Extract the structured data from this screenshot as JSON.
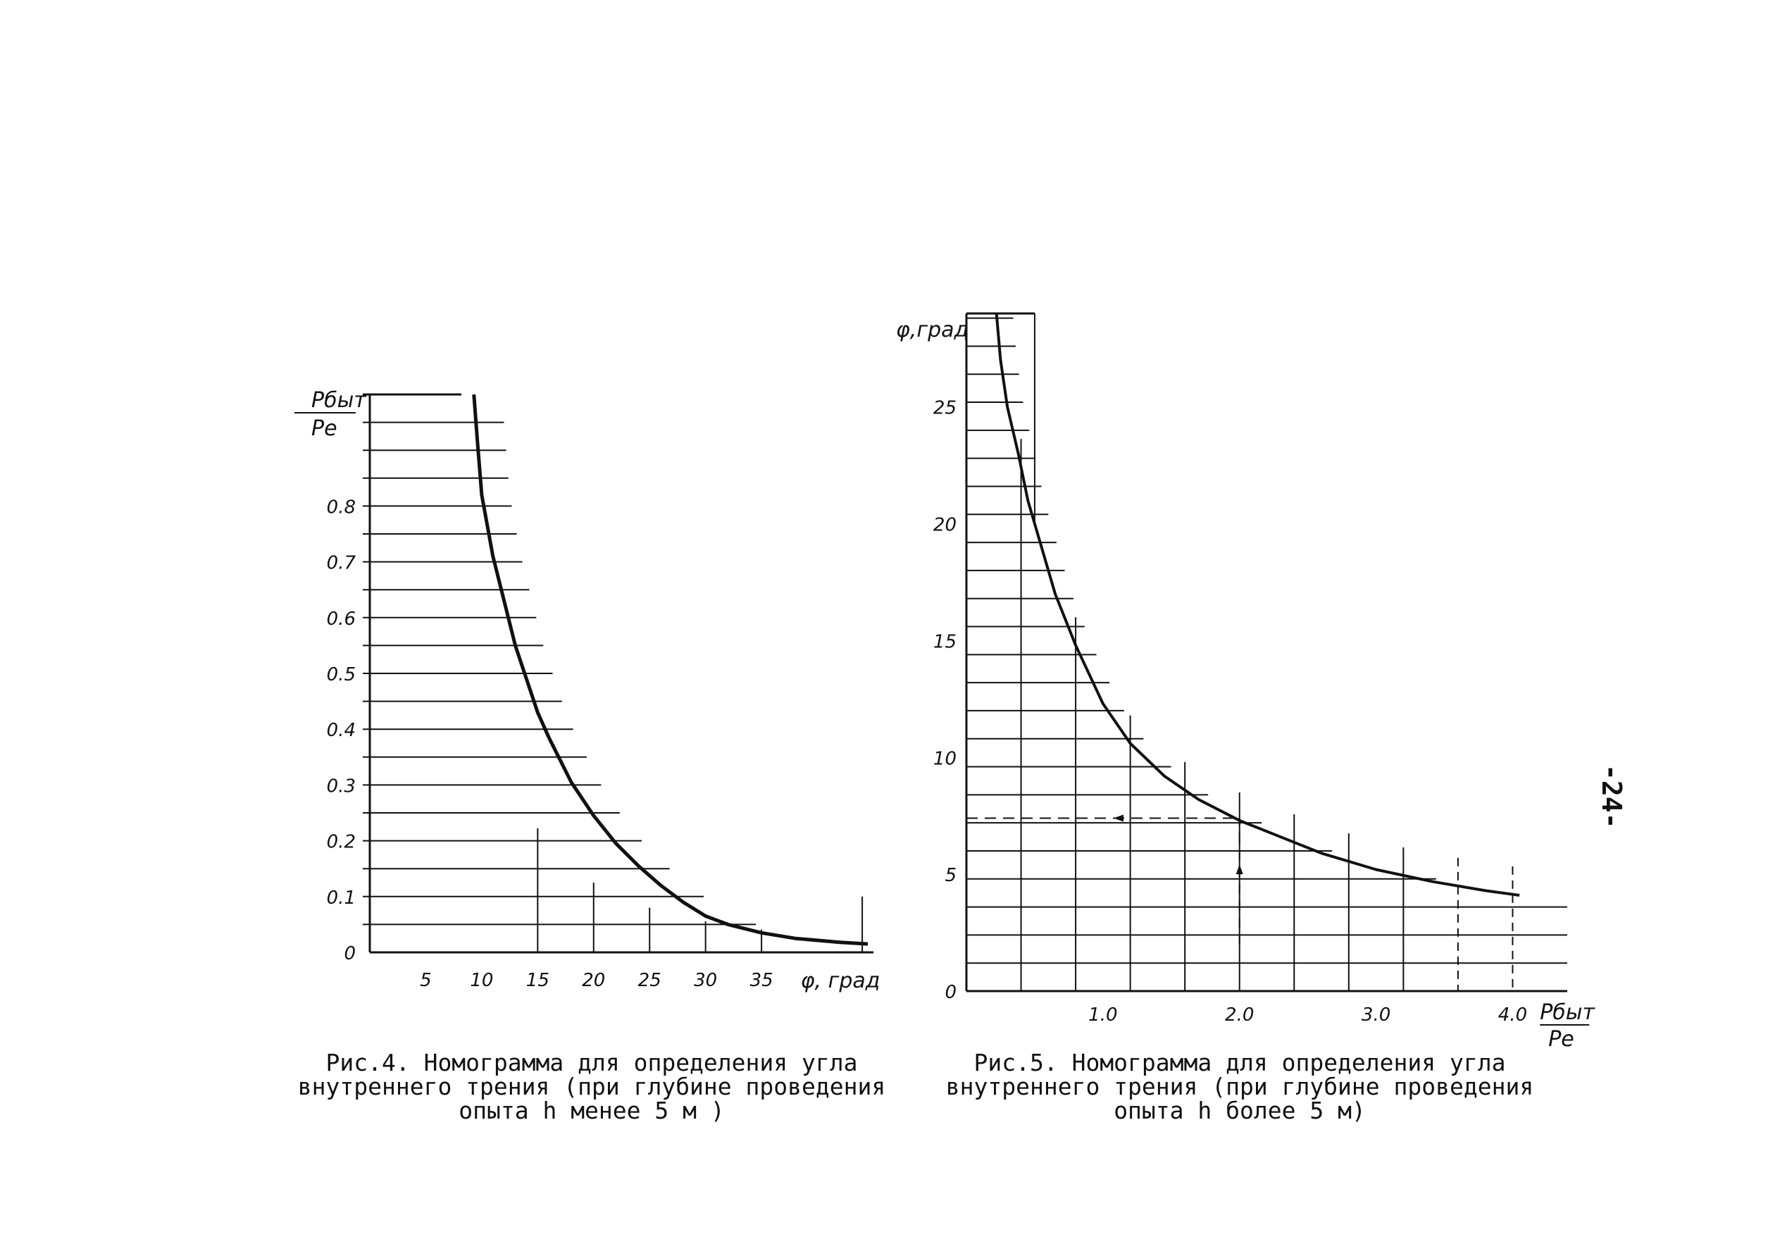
{
  "page_number": "-24-",
  "colors": {
    "ink": "#111111",
    "paper": "#ffffff"
  },
  "chart_data": [
    {
      "id": "fig4",
      "type": "line",
      "caption_lines": [
        "Рис.4. Номограмма для определения угла",
        "внутреннего трения (при глубине проведения",
        "опыта h  менее  5 м )"
      ],
      "x_label": "φ, град",
      "y_label_top": "Pбыт",
      "y_label_bottom": "Pe",
      "xlim": [
        0,
        45
      ],
      "ylim": [
        0,
        1.0
      ],
      "x_ticks": [
        5,
        10,
        15,
        20,
        25,
        30,
        35
      ],
      "x_tick_labels": [
        "5",
        "10",
        "15",
        "20",
        "25",
        "30",
        "35"
      ],
      "y_ticks": [
        0,
        0.1,
        0.2,
        0.3,
        0.4,
        0.5,
        0.6,
        0.7,
        0.8
      ],
      "y_tick_labels": [
        "0",
        "0.1",
        "0.2",
        "0.3",
        "0.4",
        "0.5",
        "0.6",
        "0.7",
        "0.8"
      ],
      "grid_y_step": 0.05,
      "curve": {
        "x": [
          9.3,
          9.6,
          10.0,
          11.0,
          12.0,
          13.0,
          14.0,
          15.0,
          16.0,
          17.0,
          18.0,
          20.0,
          22.0,
          24.0,
          26.0,
          28.0,
          30.0,
          32.0,
          35.0,
          38.0,
          42.0,
          44.5
        ],
        "y": [
          1.0,
          0.92,
          0.82,
          0.71,
          0.63,
          0.55,
          0.49,
          0.43,
          0.385,
          0.345,
          0.305,
          0.245,
          0.195,
          0.155,
          0.12,
          0.09,
          0.065,
          0.05,
          0.035,
          0.025,
          0.018,
          0.015
        ]
      }
    },
    {
      "id": "fig5",
      "type": "line",
      "caption_lines": [
        "Рис.5. Номограмма для определения угла",
        "внутреннего трения (при глубине проведения",
        "опыта  h  более 5 м)"
      ],
      "y_label": "φ,град",
      "x_label_top": "Pбыт",
      "x_label_bottom": "Pe",
      "xlim": [
        0,
        4.4
      ],
      "ylim": [
        0,
        29
      ],
      "x_ticks": [
        1.0,
        2.0,
        3.0,
        4.0
      ],
      "x_tick_labels": [
        "1.0",
        "2.0",
        "3.0",
        "4.0"
      ],
      "y_ticks": [
        0,
        5,
        10,
        15,
        20,
        25
      ],
      "y_tick_labels": [
        "0",
        "5",
        "10",
        "15",
        "20",
        "25"
      ],
      "grid_y_step": 1.2,
      "grid_x_step": 0.4,
      "curve": {
        "x": [
          0.22,
          0.25,
          0.3,
          0.38,
          0.45,
          0.55,
          0.65,
          0.8,
          1.0,
          1.2,
          1.45,
          1.7,
          2.0,
          2.3,
          2.6,
          3.0,
          3.4,
          3.8,
          4.05
        ],
        "y": [
          29.0,
          27.0,
          25.0,
          23.0,
          21.0,
          19.0,
          17.0,
          14.8,
          12.3,
          10.6,
          9.2,
          8.2,
          7.3,
          6.6,
          5.9,
          5.2,
          4.7,
          4.3,
          4.1
        ]
      },
      "example": {
        "x": 2.0,
        "y": 7.4,
        "arrow_from_y": 2.0
      }
    }
  ]
}
